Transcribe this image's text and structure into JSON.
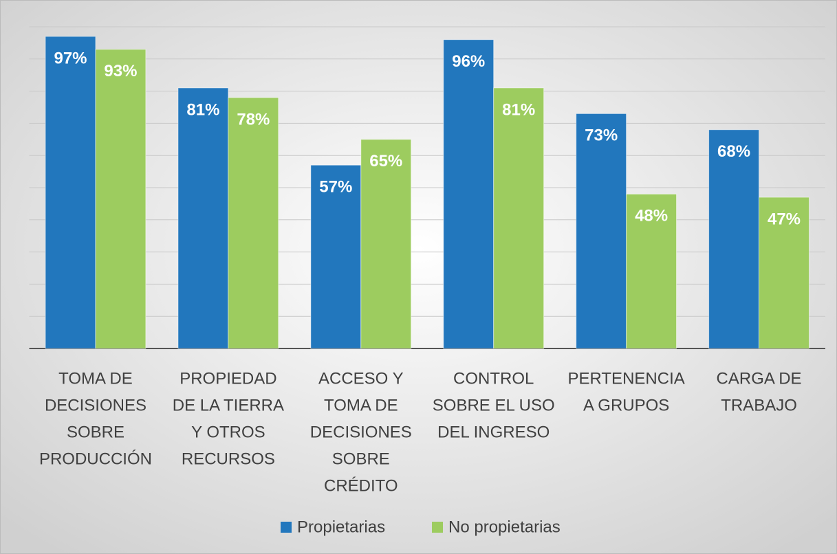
{
  "chart_data": {
    "type": "bar",
    "categories": [
      [
        "TOMA DE",
        "DECISIONES",
        "SOBRE",
        "PRODUCCIÓN"
      ],
      [
        "PROPIEDAD",
        "DE LA TIERRA",
        "Y OTROS",
        "RECURSOS"
      ],
      [
        "ACCESO Y",
        "TOMA DE",
        "DECISIONES",
        "SOBRE",
        "CRÉDITO"
      ],
      [
        "CONTROL",
        "SOBRE EL USO",
        "DEL INGRESO"
      ],
      [
        "PERTENENCIA",
        "A GRUPOS"
      ],
      [
        "CARGA DE",
        "TRABAJO"
      ]
    ],
    "series": [
      {
        "name": "Propietarias",
        "color": "#2277bd",
        "values": [
          97,
          81,
          57,
          96,
          73,
          68
        ],
        "value_labels": [
          "97%",
          "81%",
          "57%",
          "96%",
          "73%",
          "68%"
        ]
      },
      {
        "name": "No propietarias",
        "color": "#9dcc5f",
        "values": [
          93,
          78,
          65,
          81,
          48,
          47
        ],
        "value_labels": [
          "93%",
          "78%",
          "65%",
          "81%",
          "48%",
          "47%"
        ]
      }
    ],
    "ylim": [
      0,
      100
    ],
    "yticks": [
      0,
      10,
      20,
      30,
      40,
      50,
      60,
      70,
      80,
      90,
      100
    ],
    "grid": true,
    "legend": "bottom"
  }
}
